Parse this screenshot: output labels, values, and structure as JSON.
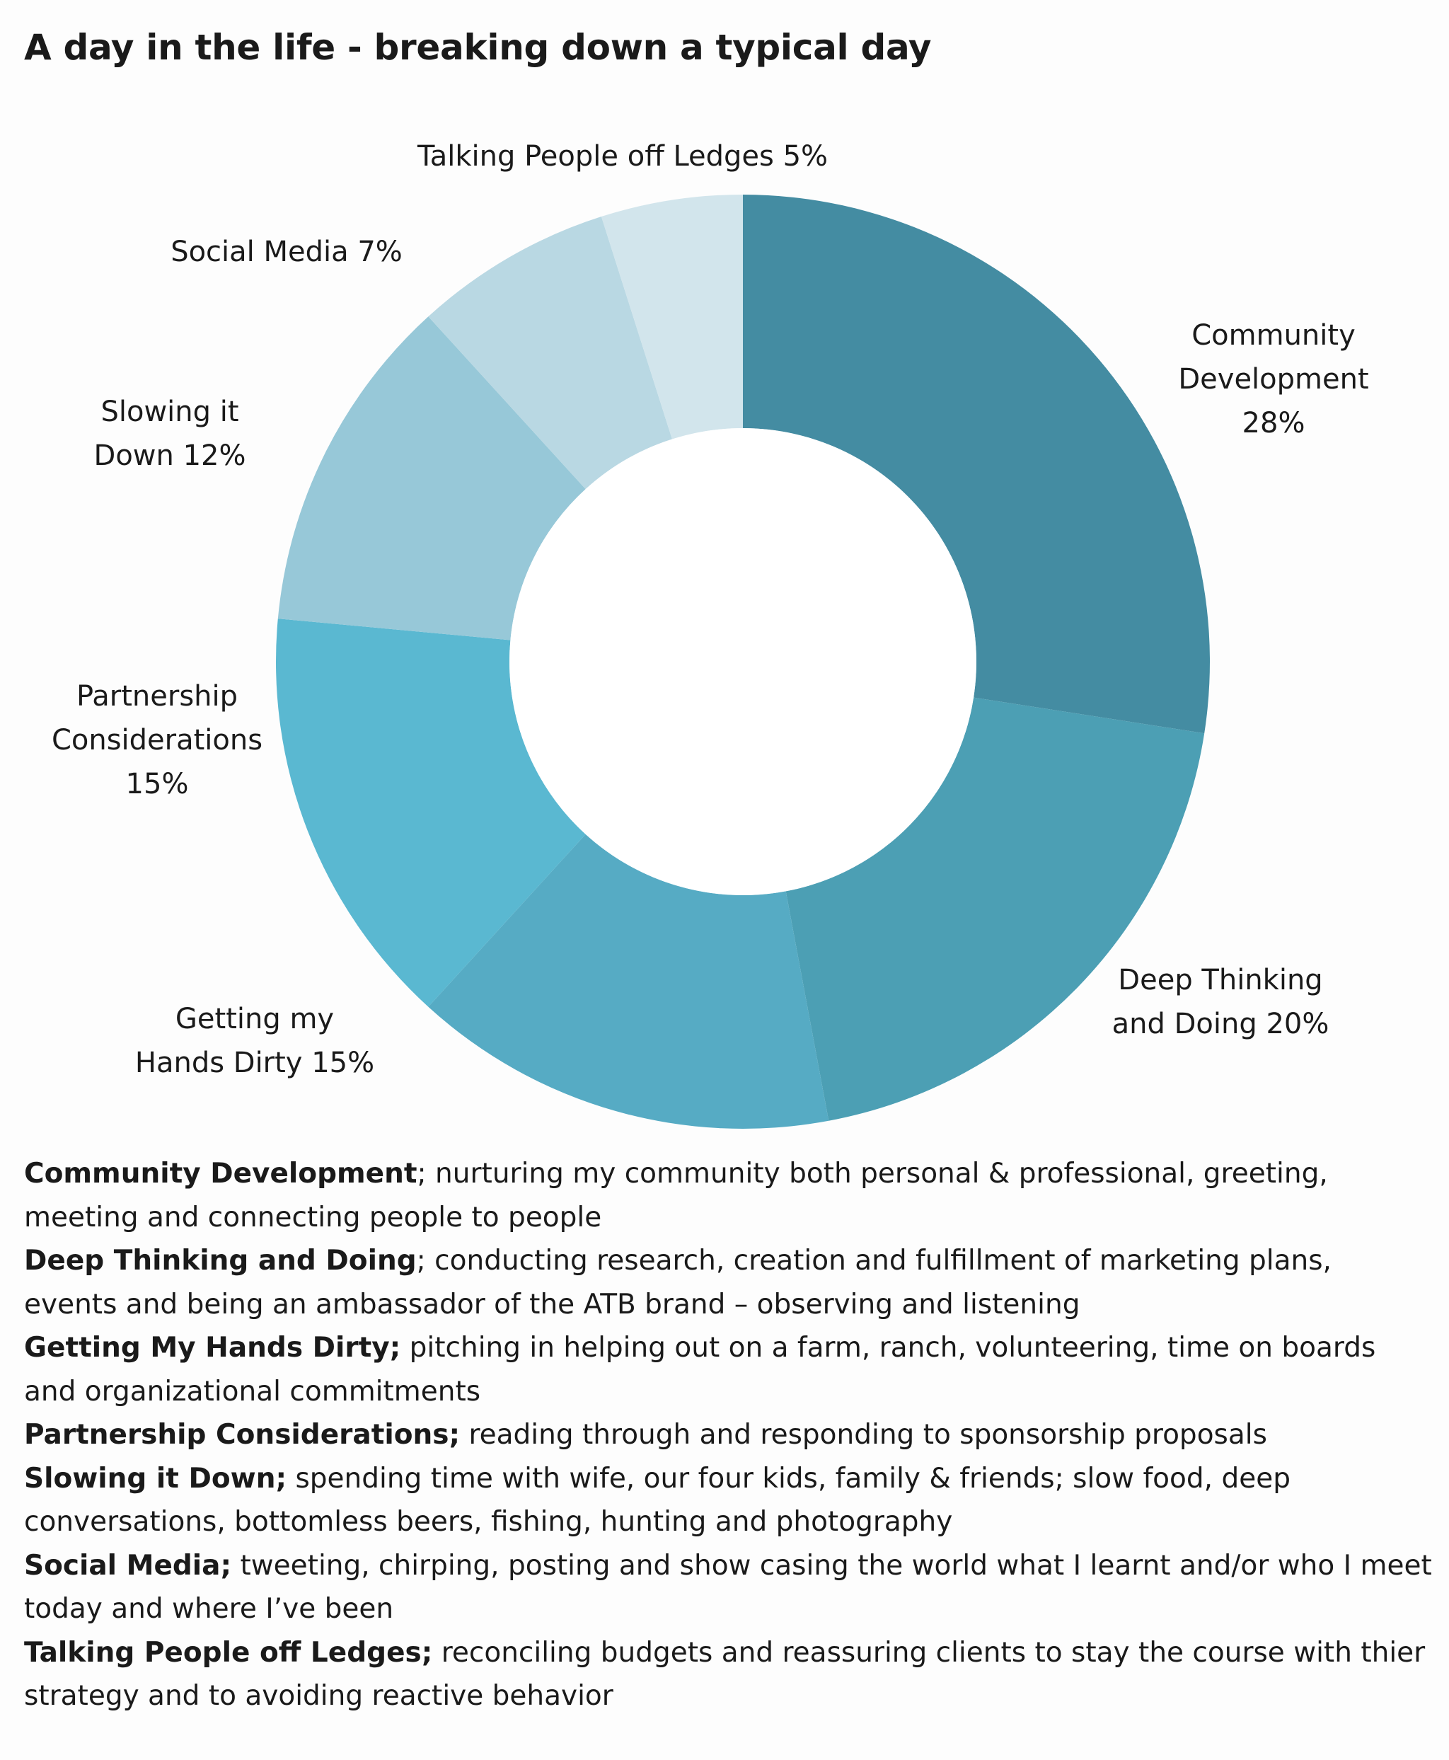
{
  "title": "A day in the life - breaking down a typical day",
  "chart_data": {
    "type": "pie",
    "variant": "donut",
    "title": "A day in the life - breaking down a typical day",
    "categories": [
      "Community Development",
      "Deep Thinking and Doing",
      "Getting my Hands Dirty",
      "Partnership Considerations",
      "Slowing it Down",
      "Social Media",
      "Talking People off Ledges"
    ],
    "values": [
      28,
      20,
      15,
      15,
      12,
      7,
      5
    ],
    "unit": "%",
    "colors": [
      "#448CA2",
      "#4C9FB4",
      "#56ABC4",
      "#5AB8D1",
      "#97C8D8",
      "#B9D8E3",
      "#D2E5EC"
    ],
    "labels": [
      [
        "Community",
        "Development",
        "28%"
      ],
      [
        "Deep Thinking",
        "and Doing 20%"
      ],
      [
        "Getting my",
        "Hands Dirty 15%"
      ],
      [
        "Partnership",
        "Considerations",
        "15%"
      ],
      [
        "Slowing it",
        "Down 12%"
      ],
      [
        "Social Media 7%"
      ],
      [
        "Talking People off Ledges 5%"
      ]
    ]
  },
  "descriptions": [
    {
      "term": "Community Development",
      "text": "; nurturing my community both personal & professional, greeting, meeting and connecting people to people"
    },
    {
      "term": "Deep Thinking and Doing",
      "text": "; conducting research, creation and fulfillment of marketing plans, events and being an ambassador of the ATB brand – observing and listening"
    },
    {
      "term": "Getting My Hands Dirty;",
      "text": " pitching in helping out on a farm, ranch, volunteering, time on boards and organizational commitments"
    },
    {
      "term": "Partnership Considerations;",
      "text": " reading through and responding to sponsorship proposals"
    },
    {
      "term": "Slowing it Down;",
      "text": " spending time with wife, our four kids, family & friends; slow food, deep conversations, bottomless beers, fishing, hunting and photography"
    },
    {
      "term": "Social Media;",
      "text": " tweeting, chirping, posting and show casing the world what I learnt and/or who I meet today and where I’ve been"
    },
    {
      "term": "Talking People off Ledges;",
      "text": " reconciling budgets and reassuring clients to stay the course with thier strategy and to avoiding reactive behavior"
    }
  ]
}
